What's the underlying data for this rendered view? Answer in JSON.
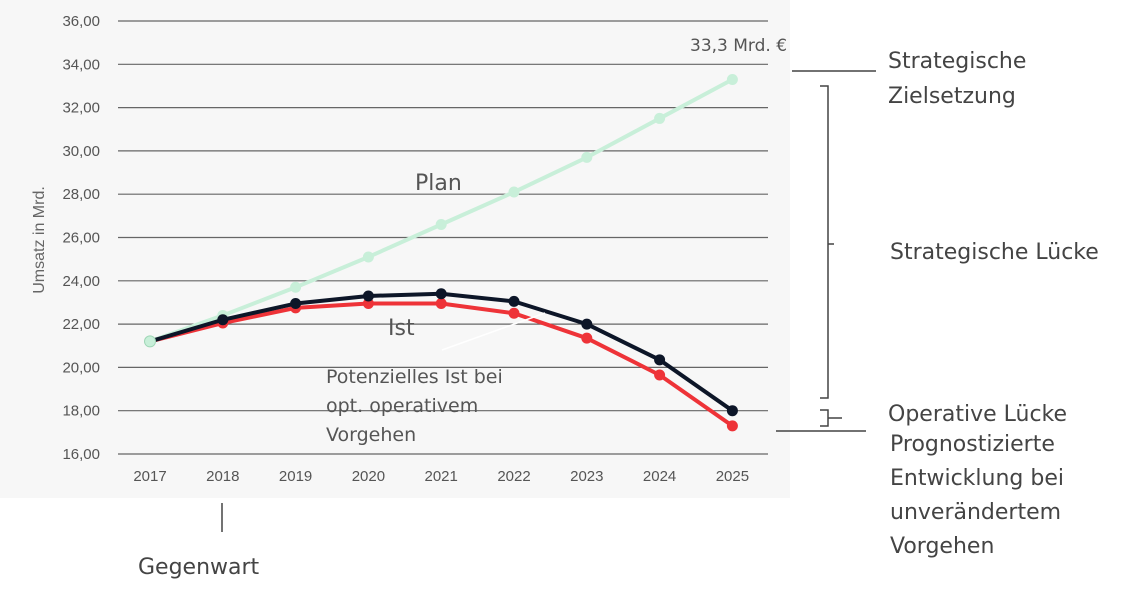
{
  "chart_data": {
    "type": "line",
    "ylabel": "Umsatz in Mrd.",
    "categories": [
      "2017",
      "2018",
      "2019",
      "2020",
      "2021",
      "2022",
      "2023",
      "2024",
      "2025"
    ],
    "y_ticks": [
      "16,00",
      "18,00",
      "20,00",
      "22,00",
      "24,00",
      "26,00",
      "28,00",
      "30,00",
      "32,00",
      "34,00",
      "36,00"
    ],
    "ylim": [
      16,
      36
    ],
    "grid": true,
    "series": [
      {
        "name": "Plan",
        "color": "#c8efd9",
        "values": [
          21.2,
          22.4,
          23.7,
          25.1,
          26.6,
          28.1,
          29.7,
          31.5,
          33.3
        ]
      },
      {
        "name": "Ist",
        "color": "#0d1628",
        "values": [
          21.2,
          22.2,
          22.95,
          23.3,
          23.4,
          23.05,
          22.0,
          20.35,
          18.0
        ]
      },
      {
        "name": "Potenzielles Ist bei opt. operativem Vorgehen",
        "color": "#ee3338",
        "values": [
          21.2,
          22.05,
          22.75,
          22.95,
          22.95,
          22.5,
          21.35,
          19.65,
          17.3
        ]
      }
    ],
    "annotations": {
      "plan_label": "Plan",
      "ist_label": "Ist",
      "potential_label": [
        "Potenzielles Ist bei",
        "opt. operativem",
        "Vorgehen"
      ],
      "end_value_label": "33,3 Mrd. €"
    }
  },
  "side_labels": {
    "strategic_goal": [
      "Strategische",
      "Zielsetzung"
    ],
    "strategic_gap": "Strategische Lücke",
    "operative_gap": "Operative Lücke",
    "forecast": [
      "Prognostizierte",
      "Entwicklung bei",
      "unverändertem",
      "Vorgehen"
    ],
    "present": "Gegenwart"
  }
}
